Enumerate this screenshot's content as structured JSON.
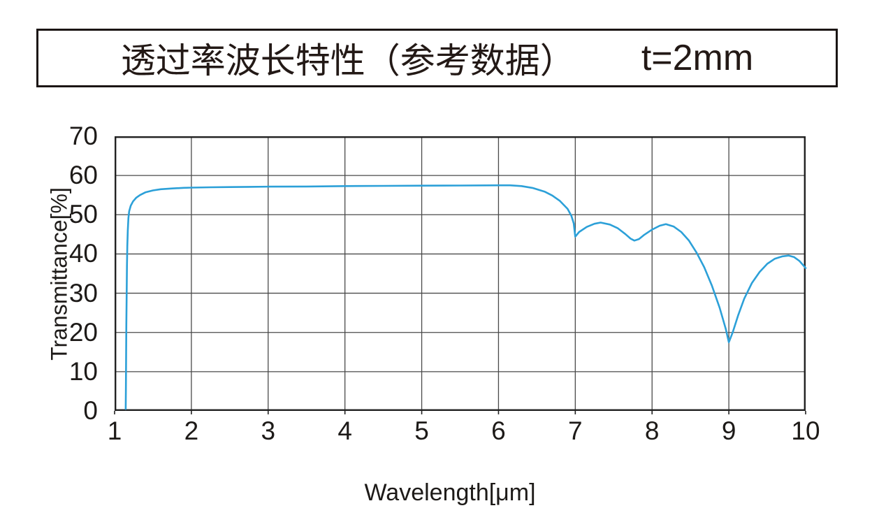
{
  "header": {
    "title_cjk": "透过率波长特性（参考数据）",
    "title_thickness": "t=2mm"
  },
  "colors": {
    "curve": "#2CA0D8",
    "grid": "#4a4a4a",
    "border": "#212121",
    "text": "#1d1a18",
    "background": "#ffffff"
  },
  "chart_data": {
    "type": "line",
    "title": "透过率波长特性（参考数据） t=2mm",
    "xlabel": "Wavelength[μm]",
    "ylabel": "Transmittance[%]",
    "xlim": [
      1,
      10
    ],
    "ylim": [
      0,
      70
    ],
    "xticks": [
      1,
      2,
      3,
      4,
      5,
      6,
      7,
      8,
      9,
      10
    ],
    "yticks": [
      0,
      10,
      20,
      30,
      40,
      50,
      60,
      70
    ],
    "grid": true,
    "legend": "none",
    "series": [
      {
        "name": "transmittance-t2mm",
        "color": "#2CA0D8",
        "points": [
          [
            1.145,
            0.5
          ],
          [
            1.147,
            6
          ],
          [
            1.15,
            14
          ],
          [
            1.153,
            22
          ],
          [
            1.157,
            30
          ],
          [
            1.161,
            37
          ],
          [
            1.166,
            42
          ],
          [
            1.172,
            46
          ],
          [
            1.18,
            49.2
          ],
          [
            1.19,
            50.9
          ],
          [
            1.21,
            52.3
          ],
          [
            1.24,
            53.4
          ],
          [
            1.28,
            54.3
          ],
          [
            1.33,
            55
          ],
          [
            1.4,
            55.7
          ],
          [
            1.5,
            56.2
          ],
          [
            1.6,
            56.5
          ],
          [
            1.75,
            56.7
          ],
          [
            1.9,
            56.85
          ],
          [
            2,
            56.9
          ],
          [
            2.25,
            57
          ],
          [
            2.5,
            57.05
          ],
          [
            2.75,
            57.1
          ],
          [
            3,
            57.15
          ],
          [
            3.5,
            57.2
          ],
          [
            4,
            57.3
          ],
          [
            4.5,
            57.35
          ],
          [
            5,
            57.4
          ],
          [
            5.5,
            57.45
          ],
          [
            6,
            57.5
          ],
          [
            6.15,
            57.5
          ],
          [
            6.3,
            57.3
          ],
          [
            6.45,
            56.8
          ],
          [
            6.6,
            55.9
          ],
          [
            6.7,
            54.9
          ],
          [
            6.8,
            53.5
          ],
          [
            6.9,
            51.5
          ],
          [
            6.95,
            49.7
          ],
          [
            6.98,
            47.8
          ],
          [
            7,
            44.4
          ],
          [
            7.05,
            45.6
          ],
          [
            7.15,
            46.9
          ],
          [
            7.25,
            47.7
          ],
          [
            7.33,
            48
          ],
          [
            7.45,
            47.5
          ],
          [
            7.55,
            46.6
          ],
          [
            7.65,
            45.1
          ],
          [
            7.72,
            43.9
          ],
          [
            7.77,
            43.4
          ],
          [
            7.83,
            43.8
          ],
          [
            7.9,
            44.9
          ],
          [
            8,
            46.2
          ],
          [
            8.1,
            47.2
          ],
          [
            8.18,
            47.6
          ],
          [
            8.28,
            47
          ],
          [
            8.38,
            45.6
          ],
          [
            8.48,
            43.4
          ],
          [
            8.58,
            40.3
          ],
          [
            8.68,
            36.6
          ],
          [
            8.78,
            31.9
          ],
          [
            8.88,
            26.3
          ],
          [
            8.96,
            20.9
          ],
          [
            9,
            17.5
          ],
          [
            9.05,
            20
          ],
          [
            9.12,
            24.3
          ],
          [
            9.2,
            28.6
          ],
          [
            9.3,
            32.6
          ],
          [
            9.4,
            35.4
          ],
          [
            9.5,
            37.5
          ],
          [
            9.6,
            38.8
          ],
          [
            9.7,
            39.4
          ],
          [
            9.78,
            39.6
          ],
          [
            9.85,
            39.2
          ],
          [
            9.92,
            38.2
          ],
          [
            10,
            36.4
          ]
        ]
      }
    ]
  }
}
